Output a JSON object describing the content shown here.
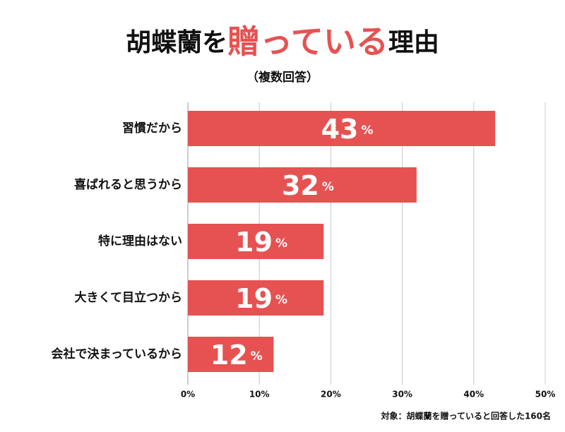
{
  "chart_data": {
    "type": "hbar",
    "title": [
      "胡蝶蘭を",
      "贈っている",
      "理由"
    ],
    "subtitle": "（複数回答）",
    "categories": [
      "習慣だから",
      "喜ばれると思うから",
      "特に理由はない",
      "大きくて目立つから",
      "会社で決まっているから"
    ],
    "values": [
      43,
      32,
      19,
      19,
      12
    ],
    "value_labels": [
      "43%",
      "32%",
      "19%",
      "19%",
      "12%"
    ],
    "color": "#e65252",
    "xlim": [
      0,
      50
    ],
    "xticks": [
      {
        "value": 0,
        "label": "0%"
      },
      {
        "value": 10,
        "label": "10%"
      },
      {
        "value": 20,
        "label": "20%"
      },
      {
        "value": 30,
        "label": "30%"
      },
      {
        "value": 40,
        "label": "40%"
      },
      {
        "value": 50,
        "label": "50%"
      }
    ],
    "grid": true,
    "note": "対象：胡蝶蘭を贈っていると回答した160名"
  }
}
